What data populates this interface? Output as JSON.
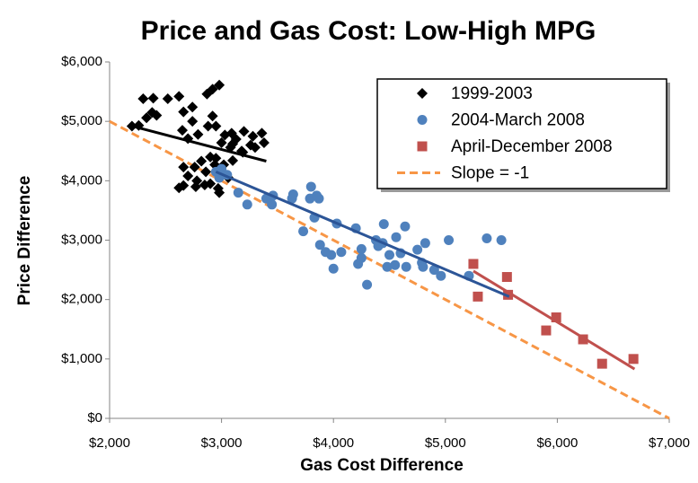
{
  "chart_data": {
    "type": "scatter",
    "title": "Price and Gas Cost: Low-High MPG",
    "x_label": "Gas Cost Difference",
    "y_label": "Price Difference",
    "xlim": [
      2000,
      7000
    ],
    "ylim": [
      0,
      6000
    ],
    "xticks": [
      {
        "value": 2000,
        "label": "$2,000"
      },
      {
        "value": 3000,
        "label": "$3,000"
      },
      {
        "value": 4000,
        "label": "$4,000"
      },
      {
        "value": 5000,
        "label": "$5,000"
      },
      {
        "value": 6000,
        "label": "$6,000"
      },
      {
        "value": 7000,
        "label": "$7,000"
      }
    ],
    "yticks": [
      {
        "value": 0,
        "label": "$0"
      },
      {
        "value": 1000,
        "label": "$1,000"
      },
      {
        "value": 2000,
        "label": "$2,000"
      },
      {
        "value": 3000,
        "label": "$3,000"
      },
      {
        "value": 4000,
        "label": "$4,000"
      },
      {
        "value": 5000,
        "label": "$5,000"
      },
      {
        "value": 6000,
        "label": "$6,000"
      }
    ],
    "grid": false,
    "legend": "top-right",
    "series": [
      {
        "name": "1999-2003",
        "color": "#000000",
        "marker": "diamond",
        "x": [
          2200,
          2260,
          2330,
          2380,
          2420,
          2300,
          2390,
          2520,
          2620,
          2660,
          2740,
          2870,
          2920,
          2980,
          2920,
          2740,
          2650,
          2700,
          2790,
          2880,
          2950,
          3030,
          3090,
          3130,
          3200,
          3280,
          3360,
          3380,
          3300,
          3190,
          3080,
          3000,
          2900,
          2820,
          2760,
          2660,
          2700,
          2780,
          2860,
          2940,
          3020,
          3100,
          3180,
          3260,
          3060,
          2980,
          2900,
          2970,
          2850,
          2770,
          2660,
          2620,
          2950,
          3100
        ],
        "y": [
          4920,
          4930,
          5060,
          5150,
          5100,
          5380,
          5390,
          5380,
          5420,
          5160,
          5240,
          5460,
          5540,
          5610,
          5090,
          5000,
          4850,
          4710,
          4780,
          4920,
          4920,
          4770,
          4800,
          4700,
          4830,
          4750,
          4800,
          4640,
          4560,
          4480,
          4560,
          4640,
          4400,
          4330,
          4230,
          4230,
          4080,
          4000,
          4150,
          4270,
          4270,
          4340,
          4500,
          4600,
          4050,
          3800,
          3950,
          3870,
          3930,
          3900,
          3920,
          3880,
          4380,
          4620
        ]
      },
      {
        "name": "2004-March 2008",
        "color": "#4f81bd",
        "marker": "circle",
        "x": [
          2950,
          3000,
          3050,
          2980,
          3150,
          3230,
          3400,
          3450,
          3460,
          3630,
          3640,
          3730,
          3800,
          3790,
          3850,
          3870,
          3830,
          3880,
          3930,
          3980,
          4000,
          4030,
          4070,
          4200,
          4220,
          4250,
          4300,
          4380,
          4440,
          4450,
          4480,
          4500,
          4560,
          4600,
          4640,
          4650,
          4750,
          4790,
          4800,
          4820,
          4900,
          4960,
          5030,
          5210,
          5370,
          5500,
          4550,
          4400,
          4250
        ],
        "y": [
          4150,
          4200,
          4100,
          4050,
          3800,
          3600,
          3700,
          3600,
          3750,
          3700,
          3770,
          3150,
          3900,
          3700,
          3750,
          3700,
          3380,
          2920,
          2800,
          2750,
          2520,
          3280,
          2800,
          3200,
          2600,
          2700,
          2250,
          3000,
          2950,
          3270,
          2550,
          2750,
          3050,
          2780,
          3230,
          2550,
          2840,
          2620,
          2550,
          2950,
          2500,
          2400,
          3000,
          2400,
          3030,
          3000,
          2580,
          2900,
          2850
        ]
      },
      {
        "name": "April-December 2008",
        "color": "#c0504d",
        "marker": "square",
        "x": [
          5250,
          5290,
          5550,
          5560,
          5900,
          5990,
          6230,
          6400,
          6680
        ],
        "y": [
          2600,
          2050,
          2380,
          2080,
          1480,
          1700,
          1330,
          920,
          1000
        ]
      },
      {
        "name": "Slope = -1",
        "color": "#f79646",
        "marker": "dashed-line",
        "x": [
          2000,
          7000
        ],
        "y": [
          5000,
          0
        ]
      }
    ],
    "trendlines": [
      {
        "color": "#000000",
        "x": [
          2200,
          3400
        ],
        "y": [
          4920,
          4330
        ]
      },
      {
        "color": "#2c5597",
        "x": [
          2950,
          5570
        ],
        "y": [
          4150,
          2050
        ]
      },
      {
        "color": "#c0504d",
        "x": [
          5250,
          6690
        ],
        "y": [
          2480,
          830
        ]
      }
    ]
  }
}
